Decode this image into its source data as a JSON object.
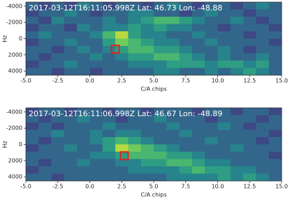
{
  "chart_data": [
    {
      "type": "heatmap",
      "title": "2017-03-12T16:11:05.998Z Lat: 46.73 Lon: -48.88",
      "xlabel": "C/A chips",
      "ylabel": "Hz",
      "xlim": [
        -5,
        15
      ],
      "ylim": [
        -4500,
        4500
      ],
      "y_inverted": true,
      "zlim": [
        0,
        9
      ],
      "colormap": "viridis",
      "xticks": [
        {
          "value": -5,
          "label": "-5.0"
        },
        {
          "value": -2.5,
          "label": "-2.5"
        },
        {
          "value": 0,
          "label": "0.0"
        },
        {
          "value": 2.5,
          "label": "2.5"
        },
        {
          "value": 5,
          "label": "5.0"
        },
        {
          "value": 7.5,
          "label": "7.5"
        },
        {
          "value": 10,
          "label": "10.0"
        },
        {
          "value": 12.5,
          "label": "12.5"
        },
        {
          "value": 15,
          "label": "15.0"
        }
      ],
      "yticks": [
        -4000,
        -2000,
        0,
        2000,
        4000
      ],
      "z": [
        [
          3,
          2,
          3,
          2,
          4,
          3,
          2,
          3,
          3,
          2,
          3,
          4,
          3,
          2,
          3,
          3,
          2,
          3,
          4,
          3
        ],
        [
          2,
          3,
          3,
          4,
          3,
          2,
          3,
          3,
          4,
          4,
          3,
          3,
          2,
          3,
          4,
          3,
          3,
          2,
          3,
          3
        ],
        [
          3,
          2,
          4,
          3,
          3,
          3,
          4,
          3,
          4,
          5,
          6,
          6,
          5,
          4,
          3,
          3,
          4,
          3,
          2,
          3
        ],
        [
          2,
          3,
          3,
          2,
          4,
          3,
          4,
          4,
          5,
          4,
          5,
          4,
          4,
          3,
          3,
          2,
          3,
          3,
          3,
          2
        ],
        [
          3,
          4,
          3,
          3,
          3,
          4,
          6,
          8,
          5,
          4,
          4,
          3,
          3,
          4,
          3,
          3,
          3,
          2,
          3,
          3
        ],
        [
          2,
          3,
          3,
          4,
          3,
          3,
          5,
          7,
          6,
          5,
          4,
          4,
          3,
          3,
          4,
          3,
          3,
          3,
          3,
          2
        ],
        [
          3,
          3,
          2,
          3,
          4,
          3,
          4,
          5,
          6,
          6,
          5,
          5,
          4,
          3,
          3,
          4,
          3,
          2,
          3,
          3
        ],
        [
          3,
          2,
          3,
          3,
          3,
          4,
          3,
          4,
          5,
          5,
          6,
          6,
          5,
          4,
          3,
          4,
          3,
          3,
          4,
          3
        ],
        [
          2,
          3,
          3,
          4,
          3,
          3,
          3,
          3,
          4,
          4,
          4,
          5,
          5,
          5,
          4,
          5,
          5,
          4,
          5,
          3
        ],
        [
          3,
          3,
          2,
          3,
          3,
          2,
          3,
          3,
          3,
          3,
          4,
          4,
          3,
          3,
          4,
          3,
          4,
          5,
          4,
          3
        ]
      ],
      "marker": {
        "x": 2,
        "y": 1300,
        "color": "#e8201a"
      }
    },
    {
      "type": "heatmap",
      "title": "2017-03-12T16:11:06.998Z Lat: 46.67 Lon: -48.89",
      "xlabel": "C/A chips",
      "ylabel": "Hz",
      "xlim": [
        -5,
        15
      ],
      "ylim": [
        -4500,
        4500
      ],
      "y_inverted": true,
      "zlim": [
        0,
        9
      ],
      "colormap": "viridis",
      "xticks": [
        {
          "value": -5,
          "label": "-5.0"
        },
        {
          "value": -2.5,
          "label": "-2.5"
        },
        {
          "value": 0,
          "label": "0.0"
        },
        {
          "value": 2.5,
          "label": "2.5"
        },
        {
          "value": 5,
          "label": "5.0"
        },
        {
          "value": 7.5,
          "label": "7.5"
        },
        {
          "value": 10,
          "label": "10.0"
        },
        {
          "value": 12.5,
          "label": "12.5"
        },
        {
          "value": 15,
          "label": "15.0"
        }
      ],
      "yticks": [
        -4000,
        -2000,
        0,
        2000,
        4000
      ],
      "z": [
        [
          2,
          3,
          3,
          2,
          3,
          3,
          2,
          3,
          3,
          2,
          3,
          3,
          3,
          2,
          3,
          3,
          2,
          3,
          3,
          2
        ],
        [
          3,
          2,
          3,
          3,
          4,
          3,
          3,
          2,
          3,
          3,
          4,
          3,
          3,
          3,
          2,
          3,
          3,
          3,
          2,
          3
        ],
        [
          2,
          3,
          2,
          3,
          3,
          3,
          4,
          3,
          3,
          3,
          3,
          4,
          3,
          3,
          3,
          4,
          3,
          2,
          3,
          3
        ],
        [
          3,
          3,
          4,
          3,
          3,
          4,
          3,
          4,
          4,
          3,
          3,
          3,
          4,
          3,
          3,
          3,
          3,
          3,
          3,
          2
        ],
        [
          3,
          2,
          3,
          3,
          3,
          4,
          5,
          6,
          5,
          4,
          3,
          3,
          3,
          3,
          4,
          3,
          3,
          3,
          2,
          3
        ],
        [
          2,
          3,
          3,
          4,
          3,
          3,
          5,
          8,
          7,
          6,
          5,
          4,
          3,
          3,
          3,
          3,
          4,
          3,
          3,
          3
        ],
        [
          3,
          3,
          3,
          3,
          3,
          4,
          4,
          5,
          6,
          6,
          6,
          5,
          5,
          4,
          3,
          3,
          3,
          3,
          3,
          2
        ],
        [
          3,
          2,
          3,
          3,
          4,
          3,
          3,
          4,
          4,
          5,
          5,
          6,
          6,
          5,
          4,
          4,
          3,
          3,
          3,
          3
        ],
        [
          2,
          3,
          3,
          3,
          3,
          3,
          3,
          3,
          4,
          4,
          4,
          4,
          5,
          6,
          5,
          5,
          4,
          4,
          3,
          3
        ],
        [
          3,
          3,
          2,
          3,
          3,
          3,
          3,
          3,
          3,
          3,
          3,
          4,
          4,
          4,
          4,
          5,
          4,
          5,
          4,
          3
        ]
      ],
      "marker": {
        "x": 2.7,
        "y": 1400,
        "color": "#e8201a"
      }
    }
  ]
}
